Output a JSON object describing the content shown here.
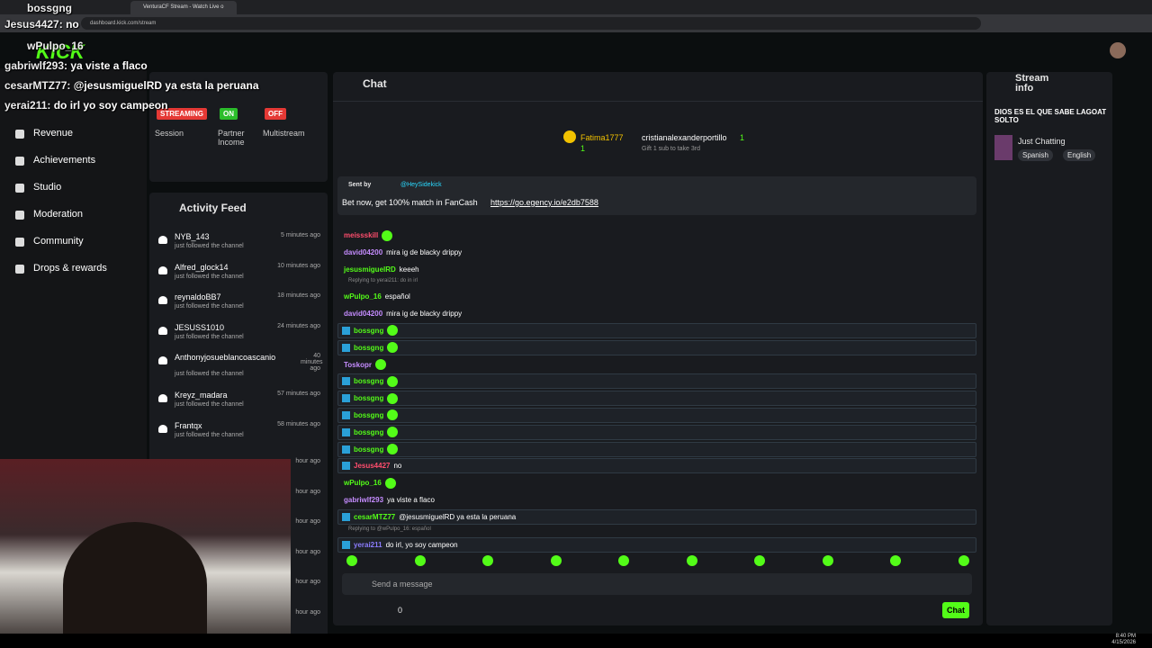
{
  "browser": {
    "tab_title": "VenturaCF Stream - Watch Live o",
    "url": "dashboard.kick.com/stream"
  },
  "logo": "KICK",
  "overlay_chat": [
    {
      "user": "bossgng",
      "text": ""
    },
    {
      "user": "Jesus4427",
      "text": ": no"
    },
    {
      "user": "wPulpo_16",
      "text": ""
    },
    {
      "user": "gabriwlf293",
      "text": ": ya viste a flaco"
    },
    {
      "user": "cesarMTZ77",
      "text": ": @jesusmiguelRD ya esta la peruana"
    },
    {
      "user": "yerai211",
      "text": ": do irl yo soy campeon"
    }
  ],
  "sidebar": {
    "items": [
      "Revenue",
      "Achievements",
      "Studio",
      "Moderation",
      "Community",
      "Drops & rewards"
    ]
  },
  "status": {
    "badges": [
      {
        "badge": "STREAMING",
        "label": "Session"
      },
      {
        "badge": "ON",
        "label": "Partner Income"
      },
      {
        "badge": "OFF",
        "label": "Multistream"
      }
    ]
  },
  "activity_feed": {
    "title": "Activity Feed",
    "action_text": "just followed the channel",
    "items": [
      {
        "name": "NYB_143",
        "time": "5 minutes ago"
      },
      {
        "name": "Alfred_glock14",
        "time": "10 minutes ago"
      },
      {
        "name": "reynaldoBB7",
        "time": "18 minutes ago"
      },
      {
        "name": "JESUSS1010",
        "time": "24 minutes ago"
      },
      {
        "name": "Anthonyjosueblancoascanio",
        "time": "40 minutes ago"
      },
      {
        "name": "Kreyz_madara",
        "time": "57 minutes ago"
      },
      {
        "name": "Frantqx",
        "time": "58 minutes ago"
      }
    ],
    "hidden_times": [
      "hour ago",
      "hour ago",
      "hour ago",
      "hour ago",
      "hour ago",
      "hour ago"
    ]
  },
  "chat": {
    "title": "Chat",
    "gift": {
      "user": "Fatima1777",
      "count": "1",
      "to": "cristianalexanderportillo",
      "to_count": "1",
      "note": "Gift 1 sub to take 3rd"
    },
    "pinned": {
      "sent_by": "Sent by",
      "handle": "@HeySidekick",
      "text": "Bet now, get 100% match in FanCash",
      "link": "https://go.egency.io/e2db7588"
    },
    "messages": [
      {
        "user": "meissskill",
        "text": "",
        "color": "#ff4d6d",
        "hl": false
      },
      {
        "user": "david04200",
        "text": "mira ig de blacky drippy",
        "color": "#c58cff",
        "hl": false
      },
      {
        "user": "jesusmiguelRD",
        "text": "keeeh",
        "color": "#53fc18",
        "hl": false
      },
      {
        "user": "wPulpo_16",
        "text": "español",
        "color": "#53fc18",
        "hl": false,
        "reply": "Replying to yerai211: do in irl"
      },
      {
        "user": "david04200",
        "text": "mira ig de blacky drippy",
        "color": "#c58cff",
        "hl": false
      },
      {
        "user": "bossgng",
        "text": "",
        "color": "#53fc18",
        "hl": true
      },
      {
        "user": "bossgng",
        "text": "",
        "color": "#53fc18",
        "hl": true
      },
      {
        "user": "Toskopr",
        "text": "",
        "color": "#c58cff",
        "hl": false
      },
      {
        "user": "bossgng",
        "text": "",
        "color": "#53fc18",
        "hl": true
      },
      {
        "user": "bossgng",
        "text": "",
        "color": "#53fc18",
        "hl": true
      },
      {
        "user": "bossgng",
        "text": "",
        "color": "#53fc18",
        "hl": true
      },
      {
        "user": "bossgng",
        "text": "",
        "color": "#53fc18",
        "hl": true
      },
      {
        "user": "bossgng",
        "text": "",
        "color": "#53fc18",
        "hl": true
      },
      {
        "user": "Jesus4427",
        "text": "no",
        "color": "#ff4d6d",
        "hl": true
      },
      {
        "user": "wPulpo_16",
        "text": "",
        "color": "#53fc18",
        "hl": false
      },
      {
        "user": "gabriwlf293",
        "text": "ya viste a flaco",
        "color": "#c58cff",
        "hl": false
      },
      {
        "user": "cesarMTZ77",
        "text": "@jesusmiguelRD ya esta la peruana",
        "color": "#53fc18",
        "hl": true
      },
      {
        "user": "yerai211",
        "text": "do irl, yo soy campeon",
        "color": "#8c7dff",
        "hl": true,
        "reply": "Replying to @wPulpo_16: español"
      }
    ],
    "input_placeholder": "Send a message",
    "count": "0",
    "button": "Chat"
  },
  "stream_info": {
    "title": "Stream info",
    "stream_title": "DIOS ES EL QUE SABE LAGOAT SOLTO",
    "category": "Just Chatting",
    "tags": [
      "Spanish",
      "English"
    ]
  },
  "taskbar": {
    "time": "8:40 PM",
    "date": "4/15/2026"
  }
}
